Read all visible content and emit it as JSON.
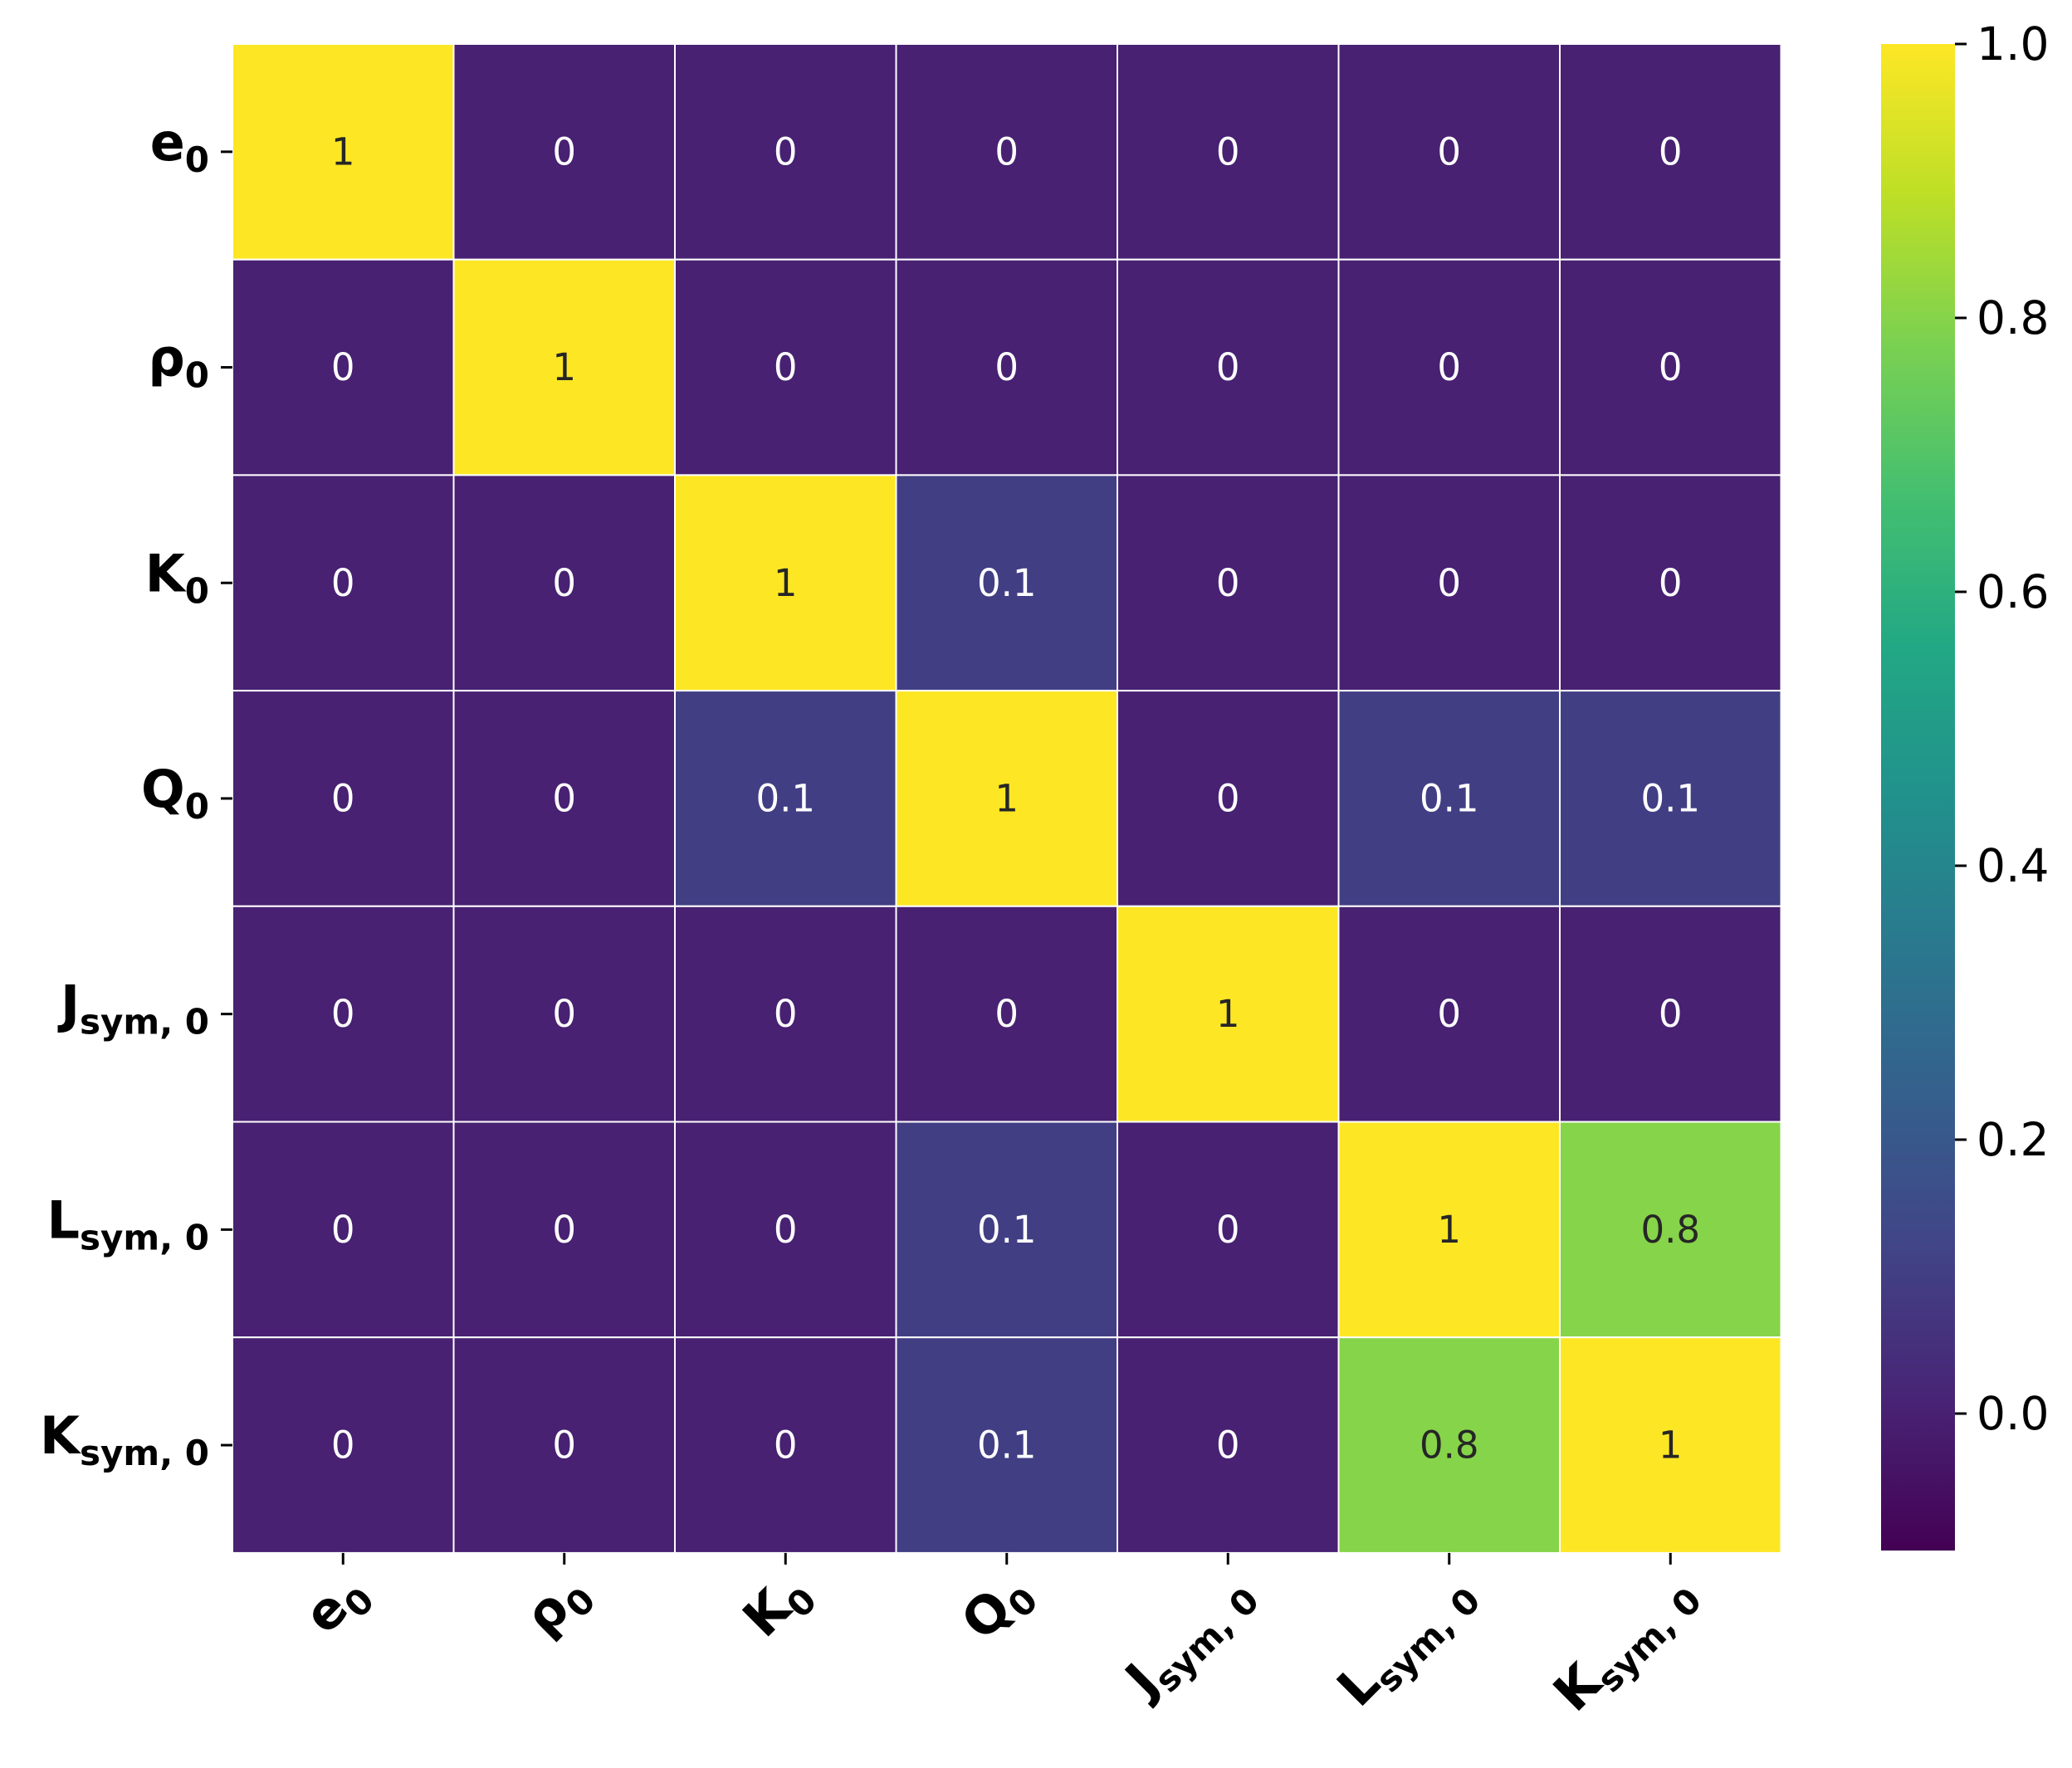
{
  "chart_data": {
    "type": "heatmap",
    "title": "",
    "colormap": "viridis",
    "row_labels": [
      {
        "base": "e",
        "sub": "0"
      },
      {
        "base": "ρ",
        "sub": "0"
      },
      {
        "base": "K",
        "sub": "0"
      },
      {
        "base": "Q",
        "sub": "0"
      },
      {
        "base": "J",
        "sub": "sym, 0"
      },
      {
        "base": "L",
        "sub": "sym, 0"
      },
      {
        "base": "K",
        "sub": "sym, 0"
      }
    ],
    "col_labels": [
      {
        "base": "e",
        "sub": "0"
      },
      {
        "base": "ρ",
        "sub": "0"
      },
      {
        "base": "K",
        "sub": "0"
      },
      {
        "base": "Q",
        "sub": "0"
      },
      {
        "base": "J",
        "sub": "sym, 0"
      },
      {
        "base": "L",
        "sub": "sym, 0"
      },
      {
        "base": "K",
        "sub": "sym, 0"
      }
    ],
    "values": [
      [
        1,
        0,
        0,
        0,
        0,
        0,
        0
      ],
      [
        0,
        1,
        0,
        0,
        0,
        0,
        0
      ],
      [
        0,
        0,
        1,
        0.1,
        0,
        0,
        0
      ],
      [
        0,
        0,
        0.1,
        1,
        0,
        0.1,
        0.1
      ],
      [
        0,
        0,
        0,
        0,
        1,
        0,
        0
      ],
      [
        0,
        0,
        0,
        0.1,
        0,
        1,
        0.8
      ],
      [
        0,
        0,
        0,
        0.1,
        0,
        0.8,
        1
      ]
    ],
    "annotations": [
      [
        "1",
        "0",
        "0",
        "0",
        "0",
        "0",
        "0"
      ],
      [
        "0",
        "1",
        "0",
        "0",
        "0",
        "0",
        "0"
      ],
      [
        "0",
        "0",
        "1",
        "0.1",
        "0",
        "0",
        "0"
      ],
      [
        "0",
        "0",
        "0.1",
        "1",
        "0",
        "0.1",
        "0.1"
      ],
      [
        "0",
        "0",
        "0",
        "0",
        "1",
        "0",
        "0"
      ],
      [
        "0",
        "0",
        "0",
        "0.1",
        "0",
        "1",
        "0.8"
      ],
      [
        "0",
        "0",
        "0",
        "0.1",
        "0",
        "0.8",
        "1"
      ]
    ],
    "colorbar": {
      "vmin": -0.1,
      "vmax": 1.0,
      "ticks": [
        0.0,
        0.2,
        0.4,
        0.6,
        0.8,
        1.0
      ],
      "tick_labels": [
        "0.0",
        "0.2",
        "0.4",
        "0.6",
        "0.8",
        "1.0"
      ]
    },
    "xlabel_rotation": "45 degrees",
    "grid_lines_color": "#ffffff"
  }
}
